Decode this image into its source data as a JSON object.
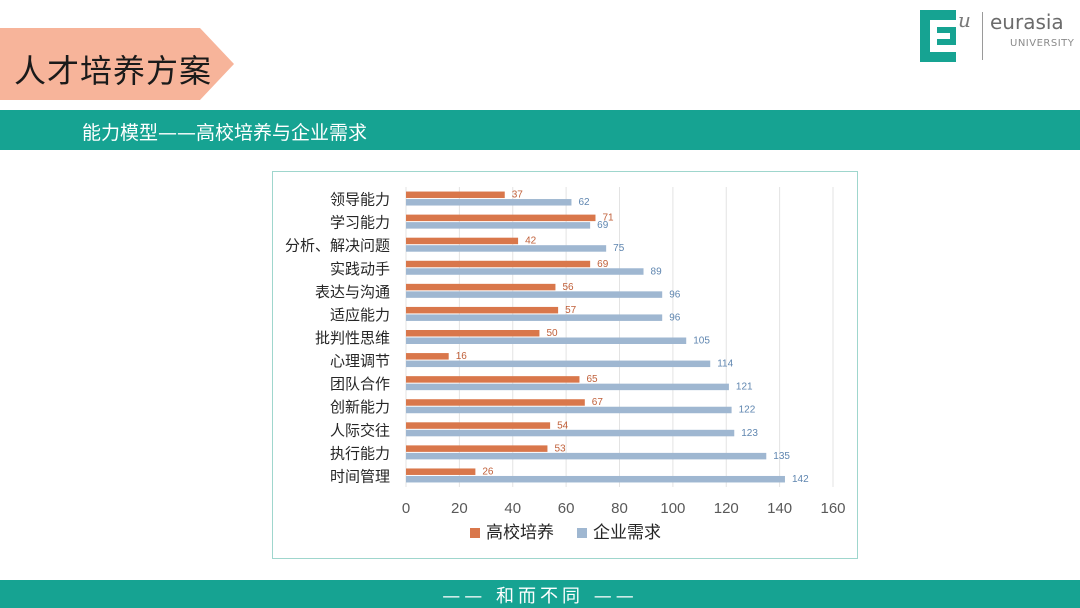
{
  "slide": {
    "title": "人才培养方案",
    "section_heading": "能力模型——高校培养与企业需求",
    "footer": "—— 和而不同 ——"
  },
  "logo": {
    "mark": "E",
    "superscript": "u",
    "name": "eurasia",
    "subtitle": "UNIVERSITY"
  },
  "colors": {
    "teal": "#16a392",
    "title_tag": "#f7b49a",
    "series_school": "#d9774b",
    "series_company": "#9fb7d1"
  },
  "chart_data": {
    "type": "bar",
    "orientation": "horizontal",
    "categories": [
      "领导能力",
      "学习能力",
      "分析、解决问题",
      "实践动手",
      "表达与沟通",
      "适应能力",
      "批判性思维",
      "心理调节",
      "团队合作",
      "创新能力",
      "人际交往",
      "执行能力",
      "时间管理"
    ],
    "series": [
      {
        "name": "高校培养",
        "values": [
          37,
          71,
          42,
          69,
          56,
          57,
          50,
          16,
          65,
          67,
          54,
          53,
          26
        ]
      },
      {
        "name": "企业需求",
        "values": [
          62,
          69,
          75,
          89,
          96,
          96,
          105,
          114,
          121,
          122,
          123,
          135,
          142
        ]
      }
    ],
    "xlim": [
      0,
      160
    ],
    "xticks": [
      0,
      20,
      40,
      60,
      80,
      100,
      120,
      140,
      160
    ],
    "grid": true,
    "legend": "bottom"
  }
}
